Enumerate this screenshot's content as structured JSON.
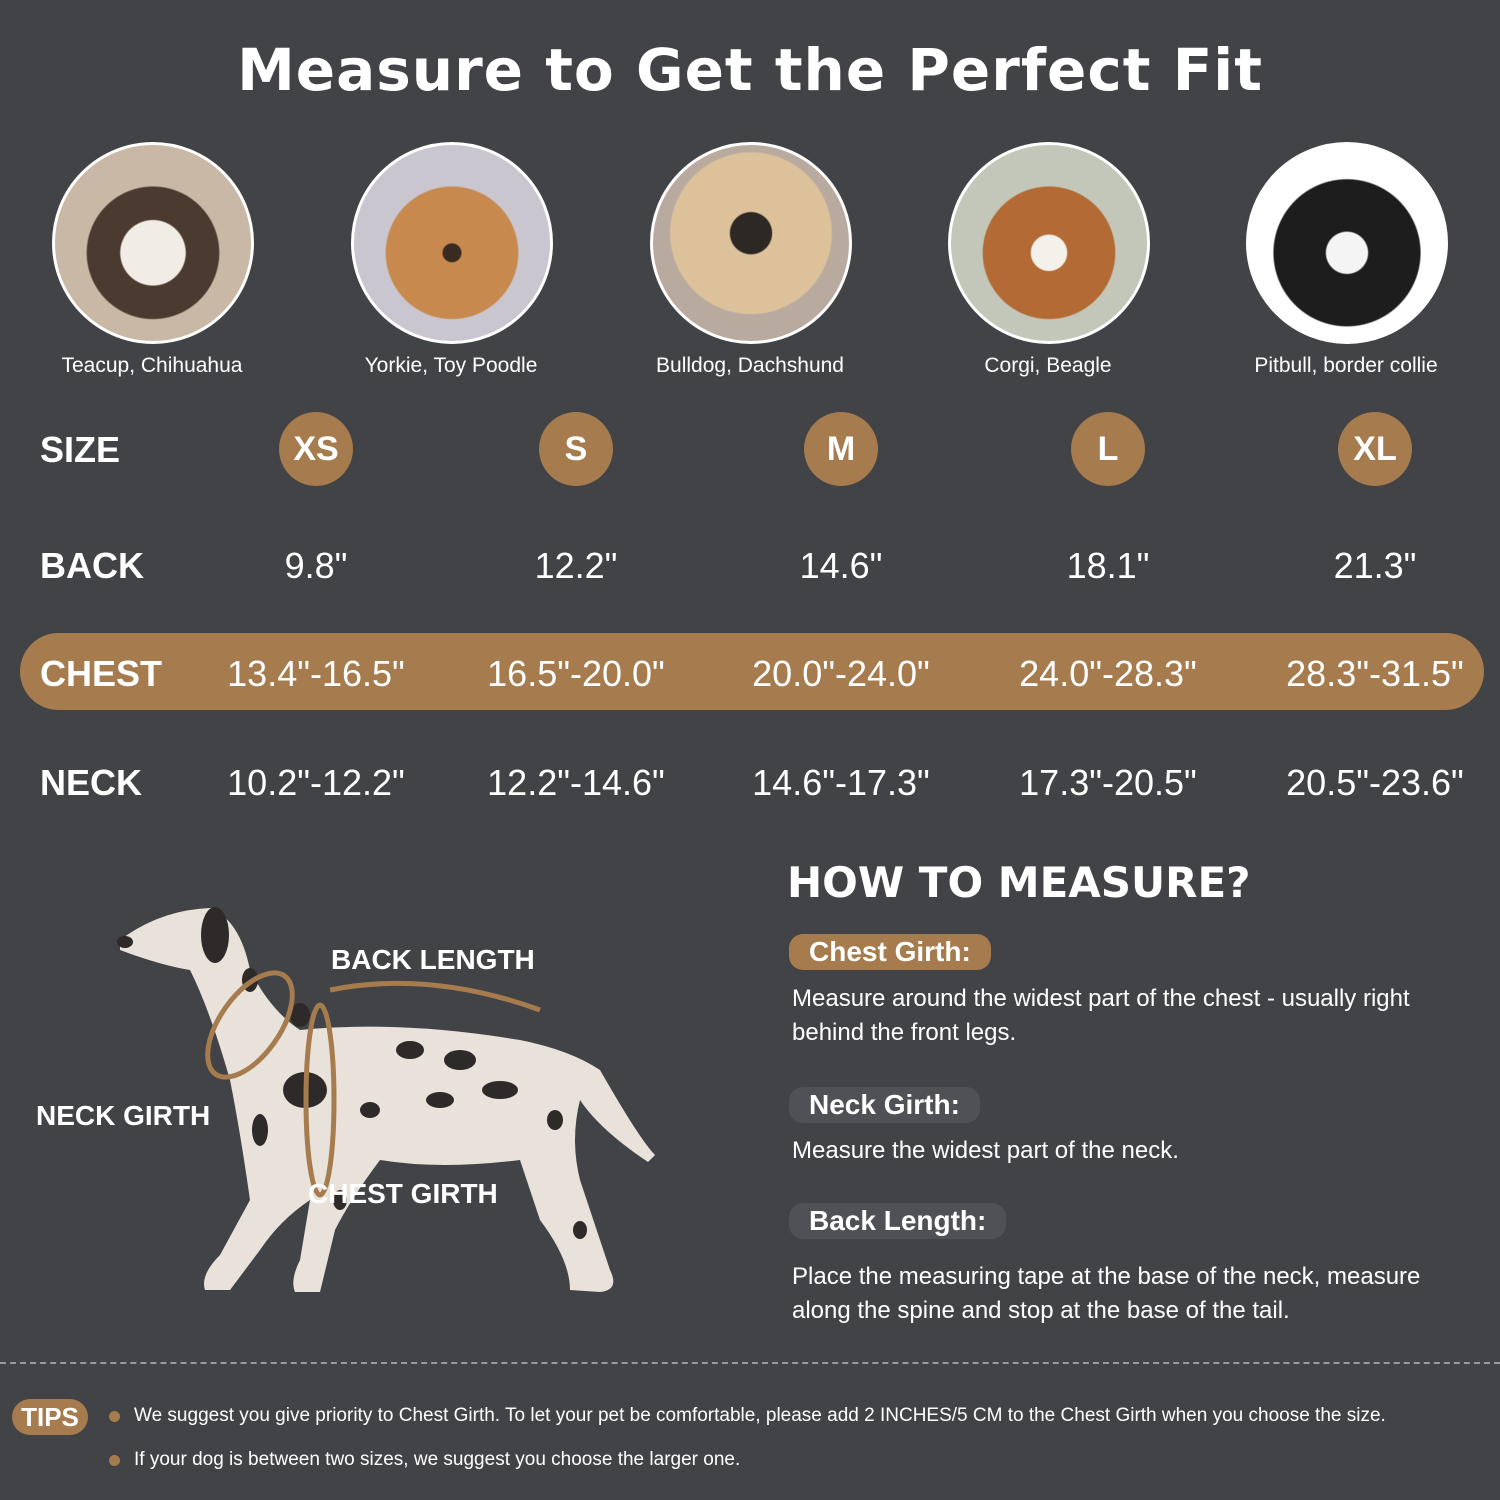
{
  "title": "Measure to Get the Perfect Fit",
  "breeds": [
    {
      "caption": "Teacup, Chihuahua",
      "photo": "chihuahua-photo"
    },
    {
      "caption": "Yorkie, Toy Poodle",
      "photo": "yorkie-photo"
    },
    {
      "caption": "Bulldog, Dachshund",
      "photo": "pug-photo"
    },
    {
      "caption": "Corgi, Beagle",
      "photo": "beagle-photo"
    },
    {
      "caption": "Pitbull, border collie",
      "photo": "border-collie-photo"
    }
  ],
  "table": {
    "row_labels": {
      "size": "SIZE",
      "back": "BACK",
      "chest": "CHEST",
      "neck": "NECK"
    },
    "sizes": [
      "XS",
      "S",
      "M",
      "L",
      "XL"
    ],
    "back": [
      "9.8\"",
      "12.2\"",
      "14.6\"",
      "18.1\"",
      "21.3\""
    ],
    "chest": [
      "13.4\"-16.5\"",
      "16.5\"-20.0\"",
      "20.0\"-24.0\"",
      "24.0\"-28.3\"",
      "28.3\"-31.5\""
    ],
    "neck": [
      "10.2\"-12.2\"",
      "12.2\"-14.6\"",
      "14.6\"-17.3\"",
      "17.3\"-20.5\"",
      "20.5\"-23.6\""
    ]
  },
  "diagram": {
    "back_length": "BACK LENGTH",
    "neck_girth": "NECK GIRTH",
    "chest_girth": "CHEST GIRTH"
  },
  "how_to": {
    "heading": "HOW TO MEASURE?",
    "items": [
      {
        "label": "Chest Girth:",
        "text": "Measure around the widest part of the chest - usually right behind the front legs."
      },
      {
        "label": "Neck Girth:",
        "text": "Measure the widest part of the neck."
      },
      {
        "label": "Back Length:",
        "text": "Place the measuring tape at the base of the neck, measure along the spine and stop at the base of the tail."
      }
    ]
  },
  "tips": {
    "label": "TIPS",
    "items": [
      "We suggest you give priority to Chest Girth. To let your pet be comfortable, please add 2 INCHES/5 CM to the Chest Girth when you choose the size.",
      "If your dog is between two sizes, we suggest you choose the larger one."
    ]
  },
  "colors": {
    "background": "#424347",
    "accent": "#a67b4e",
    "pill": "#505156",
    "text": "#ffffff"
  }
}
